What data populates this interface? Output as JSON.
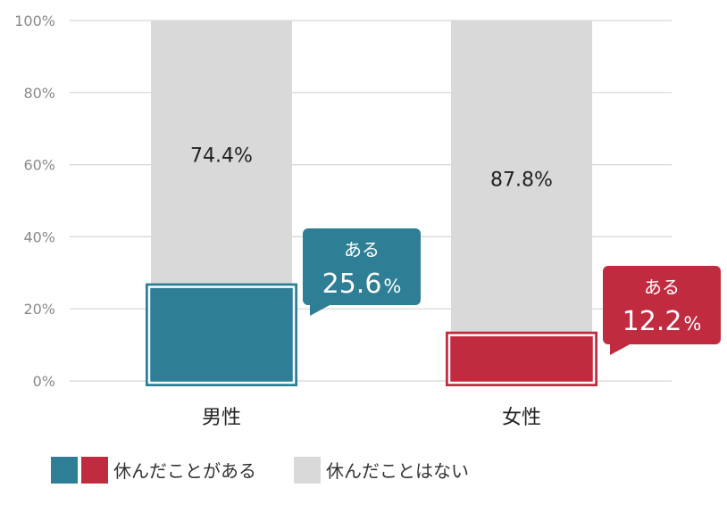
{
  "chart_data": {
    "type": "bar",
    "stacked": true,
    "categories": [
      "男性",
      "女性"
    ],
    "series": [
      {
        "name": "休んだことがある",
        "values": [
          25.6,
          12.2
        ],
        "colors": [
          "#2e7f96",
          "#c12b3f"
        ]
      },
      {
        "name": "休んだことはない",
        "values": [
          74.4,
          87.8
        ],
        "color": "#d9d9d9"
      }
    ],
    "segment_labels": [
      "74.4%",
      "87.8%"
    ],
    "callouts": [
      {
        "top": "ある",
        "value": "25.6",
        "unit": "%",
        "color": "#2e7f96"
      },
      {
        "top": "ある",
        "value": "12.2",
        "unit": "%",
        "color": "#c12b3f"
      }
    ],
    "yticks": [
      "0%",
      "20%",
      "40%",
      "60%",
      "80%",
      "100%"
    ],
    "ylim": [
      0,
      100
    ],
    "grid": true,
    "legend_position": "bottom-left",
    "legend": [
      {
        "label": "休んだことがある",
        "colors": [
          "#2e7f96",
          "#c12b3f"
        ]
      },
      {
        "label": "休んだことはない",
        "colors": [
          "#d9d9d9"
        ]
      }
    ]
  }
}
